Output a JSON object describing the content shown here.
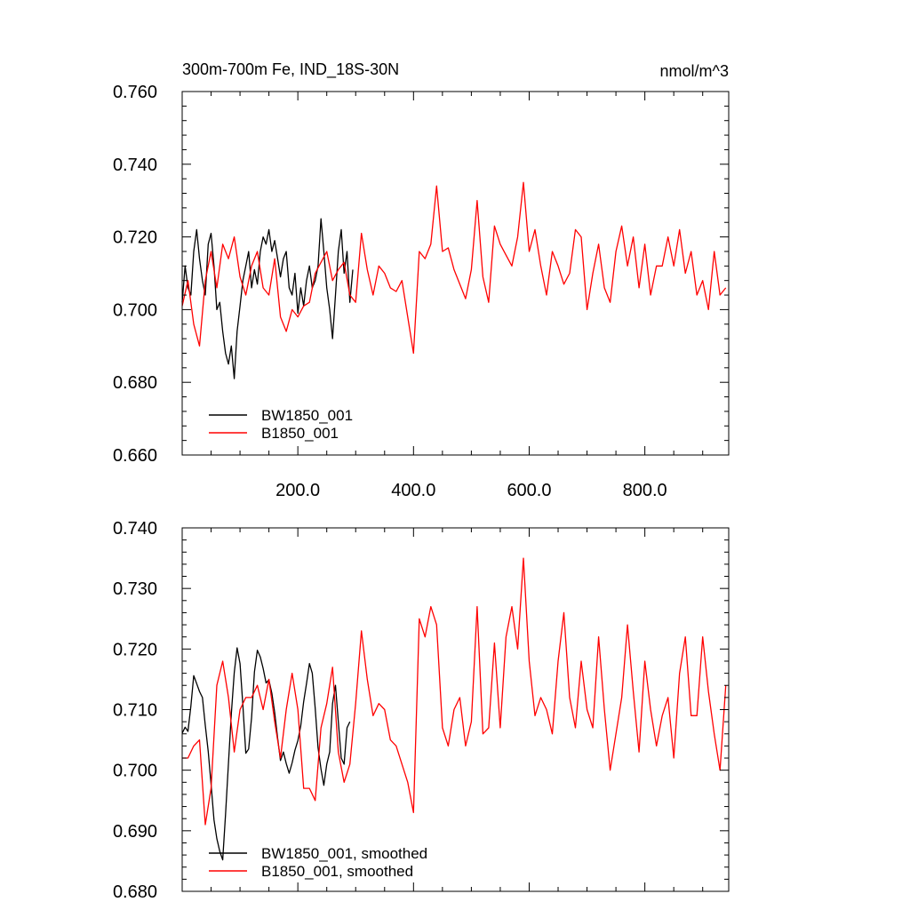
{
  "chart_data": [
    {
      "type": "line",
      "title": "300m-700m Fe, IND_18S-30N",
      "units": "nmol/m^3",
      "xlim": [
        0,
        945
      ],
      "ylim": [
        0.66,
        0.76
      ],
      "x_ticks": [
        200,
        400,
        600,
        800
      ],
      "x_tick_labels": [
        "200.0",
        "400.0",
        "600.0",
        "800.0"
      ],
      "y_ticks": [
        0.66,
        0.68,
        0.7,
        0.72,
        0.74,
        0.76
      ],
      "y_tick_labels": [
        "0.660",
        "0.680",
        "0.700",
        "0.720",
        "0.740",
        "0.760"
      ],
      "legend_position": "bottom-left",
      "series": [
        {
          "name": "BW1850_001",
          "color": "#000000",
          "x": [
            0,
            5,
            10,
            15,
            20,
            25,
            30,
            35,
            40,
            45,
            50,
            55,
            60,
            65,
            70,
            75,
            80,
            85,
            90,
            95,
            100,
            105,
            110,
            115,
            120,
            125,
            130,
            135,
            140,
            145,
            150,
            155,
            160,
            165,
            170,
            175,
            180,
            185,
            190,
            195,
            200,
            205,
            210,
            215,
            220,
            225,
            230,
            235,
            240,
            245,
            250,
            255,
            260,
            265,
            270,
            275,
            280,
            285,
            290,
            295
          ],
          "y": [
            0.702,
            0.712,
            0.706,
            0.704,
            0.716,
            0.722,
            0.714,
            0.708,
            0.704,
            0.718,
            0.721,
            0.712,
            0.7,
            0.702,
            0.694,
            0.688,
            0.685,
            0.69,
            0.681,
            0.694,
            0.701,
            0.708,
            0.712,
            0.716,
            0.706,
            0.711,
            0.707,
            0.716,
            0.72,
            0.718,
            0.722,
            0.716,
            0.719,
            0.714,
            0.709,
            0.714,
            0.716,
            0.706,
            0.704,
            0.71,
            0.699,
            0.706,
            0.701,
            0.708,
            0.712,
            0.706,
            0.708,
            0.712,
            0.725,
            0.716,
            0.706,
            0.7,
            0.692,
            0.704,
            0.716,
            0.722,
            0.71,
            0.716,
            0.702,
            0.711
          ]
        },
        {
          "name": "B1850_001",
          "color": "#ff0000",
          "x": [
            0,
            10,
            20,
            30,
            40,
            50,
            60,
            70,
            80,
            90,
            100,
            110,
            120,
            130,
            140,
            150,
            160,
            170,
            180,
            190,
            200,
            210,
            220,
            230,
            240,
            250,
            260,
            270,
            280,
            290,
            300,
            310,
            320,
            330,
            340,
            350,
            360,
            370,
            380,
            390,
            400,
            410,
            420,
            430,
            440,
            450,
            460,
            470,
            480,
            490,
            500,
            510,
            520,
            530,
            540,
            550,
            560,
            570,
            580,
            590,
            600,
            610,
            620,
            630,
            640,
            650,
            660,
            670,
            680,
            690,
            700,
            710,
            720,
            730,
            740,
            750,
            760,
            770,
            780,
            790,
            800,
            810,
            820,
            830,
            840,
            850,
            860,
            870,
            880,
            890,
            900,
            910,
            920,
            930,
            940
          ],
          "y": [
            0.701,
            0.708,
            0.696,
            0.69,
            0.708,
            0.716,
            0.706,
            0.718,
            0.714,
            0.72,
            0.709,
            0.704,
            0.712,
            0.716,
            0.706,
            0.704,
            0.714,
            0.698,
            0.694,
            0.7,
            0.698,
            0.701,
            0.702,
            0.71,
            0.713,
            0.716,
            0.708,
            0.711,
            0.713,
            0.704,
            0.702,
            0.721,
            0.711,
            0.704,
            0.712,
            0.71,
            0.706,
            0.705,
            0.708,
            0.698,
            0.688,
            0.716,
            0.714,
            0.718,
            0.734,
            0.716,
            0.717,
            0.711,
            0.707,
            0.703,
            0.711,
            0.73,
            0.709,
            0.702,
            0.723,
            0.718,
            0.715,
            0.712,
            0.72,
            0.735,
            0.716,
            0.722,
            0.712,
            0.704,
            0.716,
            0.712,
            0.707,
            0.71,
            0.722,
            0.72,
            0.7,
            0.71,
            0.718,
            0.706,
            0.702,
            0.716,
            0.723,
            0.712,
            0.72,
            0.706,
            0.718,
            0.704,
            0.712,
            0.712,
            0.72,
            0.712,
            0.722,
            0.71,
            0.716,
            0.704,
            0.708,
            0.7,
            0.716,
            0.704,
            0.706
          ]
        }
      ]
    },
    {
      "type": "line",
      "xlim": [
        0,
        945
      ],
      "ylim": [
        0.68,
        0.74
      ],
      "y_ticks": [
        0.68,
        0.69,
        0.7,
        0.71,
        0.72,
        0.73,
        0.74
      ],
      "y_tick_labels": [
        "0.680",
        "0.690",
        "0.700",
        "0.710",
        "0.720",
        "0.730",
        "0.740"
      ],
      "legend_position": "bottom-left",
      "series": [
        {
          "name": "BW1850_001, smoothed",
          "color": "#000000",
          "x": [
            0,
            5,
            10,
            15,
            20,
            25,
            30,
            35,
            40,
            45,
            50,
            55,
            60,
            65,
            70,
            75,
            80,
            85,
            90,
            95,
            100,
            105,
            110,
            115,
            120,
            125,
            130,
            135,
            140,
            145,
            150,
            155,
            160,
            165,
            170,
            175,
            180,
            185,
            190,
            195,
            200,
            205,
            210,
            215,
            220,
            225,
            230,
            235,
            240,
            245,
            250,
            255,
            260,
            265,
            270,
            275,
            280,
            285,
            290
          ],
          "y": [
            0.7061,
            0.7071,
            0.7064,
            0.7106,
            0.7156,
            0.7143,
            0.713,
            0.712,
            0.7074,
            0.7031,
            0.6977,
            0.6918,
            0.6887,
            0.6866,
            0.6852,
            0.6927,
            0.7012,
            0.7093,
            0.7161,
            0.7202,
            0.7176,
            0.7107,
            0.7028,
            0.7035,
            0.7087,
            0.7162,
            0.7198,
            0.7187,
            0.7168,
            0.7144,
            0.7149,
            0.7127,
            0.7095,
            0.7053,
            0.7016,
            0.703,
            0.7011,
            0.6995,
            0.7012,
            0.7033,
            0.7049,
            0.7073,
            0.7113,
            0.7143,
            0.7176,
            0.716,
            0.7102,
            0.7037,
            0.7002,
            0.6975,
            0.701,
            0.703,
            0.711,
            0.714,
            0.708,
            0.702,
            0.701,
            0.707,
            0.708
          ]
        },
        {
          "name": "B1850_001, smoothed",
          "color": "#ff0000",
          "x": [
            0,
            10,
            20,
            30,
            40,
            50,
            60,
            70,
            80,
            90,
            100,
            110,
            120,
            130,
            140,
            150,
            160,
            170,
            180,
            190,
            200,
            210,
            220,
            230,
            240,
            250,
            260,
            270,
            280,
            290,
            300,
            310,
            320,
            330,
            340,
            350,
            360,
            370,
            380,
            390,
            400,
            410,
            420,
            430,
            440,
            450,
            460,
            470,
            480,
            490,
            500,
            510,
            520,
            530,
            540,
            550,
            560,
            570,
            580,
            590,
            600,
            610,
            620,
            630,
            640,
            650,
            660,
            670,
            680,
            690,
            700,
            710,
            720,
            730,
            740,
            750,
            760,
            770,
            780,
            790,
            800,
            810,
            820,
            830,
            840,
            850,
            860,
            870,
            880,
            890,
            900,
            910,
            920,
            930,
            940
          ],
          "y": [
            0.702,
            0.702,
            0.704,
            0.705,
            0.691,
            0.697,
            0.714,
            0.718,
            0.712,
            0.703,
            0.71,
            0.712,
            0.712,
            0.714,
            0.71,
            0.715,
            0.708,
            0.702,
            0.71,
            0.716,
            0.71,
            0.697,
            0.697,
            0.695,
            0.707,
            0.711,
            0.717,
            0.703,
            0.698,
            0.701,
            0.711,
            0.723,
            0.715,
            0.709,
            0.711,
            0.71,
            0.705,
            0.704,
            0.701,
            0.698,
            0.693,
            0.725,
            0.722,
            0.727,
            0.724,
            0.707,
            0.704,
            0.71,
            0.712,
            0.704,
            0.708,
            0.727,
            0.706,
            0.707,
            0.721,
            0.707,
            0.722,
            0.727,
            0.72,
            0.735,
            0.718,
            0.709,
            0.712,
            0.71,
            0.706,
            0.718,
            0.726,
            0.712,
            0.707,
            0.718,
            0.71,
            0.707,
            0.722,
            0.71,
            0.7,
            0.706,
            0.712,
            0.724,
            0.713,
            0.703,
            0.718,
            0.71,
            0.704,
            0.709,
            0.712,
            0.702,
            0.716,
            0.722,
            0.709,
            0.709,
            0.722,
            0.713,
            0.706,
            0.7,
            0.714
          ]
        }
      ]
    }
  ]
}
